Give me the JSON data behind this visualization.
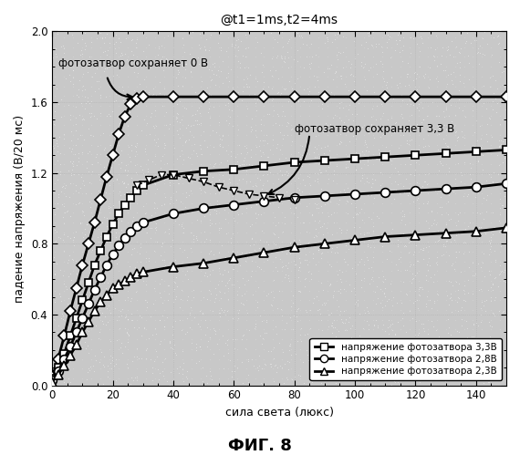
{
  "title": "@t1=1ms,t2=4ms",
  "xlabel": "сила света (люкс)",
  "ylabel": "падение напряжения (В/20 мс)",
  "fig_label": "ФИГ. 8",
  "xlim": [
    0,
    150
  ],
  "ylim": [
    0.0,
    2.0
  ],
  "xticks": [
    0,
    20,
    40,
    60,
    80,
    100,
    120,
    140
  ],
  "yticks": [
    0.0,
    0.4,
    0.8,
    1.2,
    1.6,
    2.0
  ],
  "annotation1": "фотозатвор сохраняет 0 В",
  "annotation2": "фотозатвор сохраняет 3,3 В",
  "legend_labels": [
    "напряжение фотозатвора 3,3В",
    "напряжение фотозатвора 2,8В",
    "напряжение фотозатвора 2,3В"
  ],
  "x_diamond": [
    0,
    2,
    4,
    6,
    8,
    10,
    12,
    14,
    16,
    18,
    20,
    22,
    24,
    26,
    28,
    30,
    40,
    50,
    60,
    70,
    80,
    90,
    100,
    110,
    120,
    130,
    140,
    150
  ],
  "y_diamond": [
    0.05,
    0.15,
    0.28,
    0.42,
    0.55,
    0.68,
    0.8,
    0.92,
    1.05,
    1.18,
    1.3,
    1.42,
    1.52,
    1.59,
    1.62,
    1.63,
    1.63,
    1.63,
    1.63,
    1.63,
    1.63,
    1.63,
    1.63,
    1.63,
    1.63,
    1.63,
    1.63,
    1.63
  ],
  "x_square": [
    0,
    2,
    4,
    6,
    8,
    10,
    12,
    14,
    16,
    18,
    20,
    22,
    24,
    26,
    28,
    30,
    40,
    50,
    60,
    70,
    80,
    90,
    100,
    110,
    120,
    130,
    140,
    150
  ],
  "y_square": [
    0.04,
    0.1,
    0.18,
    0.28,
    0.38,
    0.48,
    0.58,
    0.68,
    0.76,
    0.84,
    0.91,
    0.97,
    1.02,
    1.06,
    1.1,
    1.13,
    1.19,
    1.21,
    1.22,
    1.24,
    1.26,
    1.27,
    1.28,
    1.29,
    1.3,
    1.31,
    1.32,
    1.33
  ],
  "x_circle": [
    0,
    2,
    4,
    6,
    8,
    10,
    12,
    14,
    16,
    18,
    20,
    22,
    24,
    26,
    28,
    30,
    40,
    50,
    60,
    70,
    80,
    90,
    100,
    110,
    120,
    130,
    140,
    150
  ],
  "y_circle": [
    0.03,
    0.08,
    0.15,
    0.22,
    0.3,
    0.38,
    0.46,
    0.54,
    0.61,
    0.68,
    0.74,
    0.79,
    0.83,
    0.87,
    0.9,
    0.92,
    0.97,
    1.0,
    1.02,
    1.04,
    1.06,
    1.07,
    1.08,
    1.09,
    1.1,
    1.11,
    1.12,
    1.14
  ],
  "x_triangle": [
    0,
    2,
    4,
    6,
    8,
    10,
    12,
    14,
    16,
    18,
    20,
    22,
    24,
    26,
    28,
    30,
    40,
    50,
    60,
    70,
    80,
    90,
    100,
    110,
    120,
    130,
    140,
    150
  ],
  "y_triangle": [
    0.02,
    0.06,
    0.11,
    0.17,
    0.23,
    0.3,
    0.36,
    0.42,
    0.47,
    0.51,
    0.55,
    0.57,
    0.59,
    0.61,
    0.63,
    0.64,
    0.67,
    0.69,
    0.72,
    0.75,
    0.78,
    0.8,
    0.82,
    0.84,
    0.85,
    0.86,
    0.87,
    0.89
  ],
  "x_invtriangle": [
    28,
    32,
    36,
    40,
    45,
    50,
    55,
    60,
    65,
    70,
    75,
    80
  ],
  "y_invtriangle": [
    1.13,
    1.16,
    1.19,
    1.19,
    1.17,
    1.15,
    1.12,
    1.1,
    1.08,
    1.07,
    1.06,
    1.05
  ],
  "bg_color": "#c8c8c8",
  "fig_bg_color": "#ffffff",
  "line_color": "#000000"
}
